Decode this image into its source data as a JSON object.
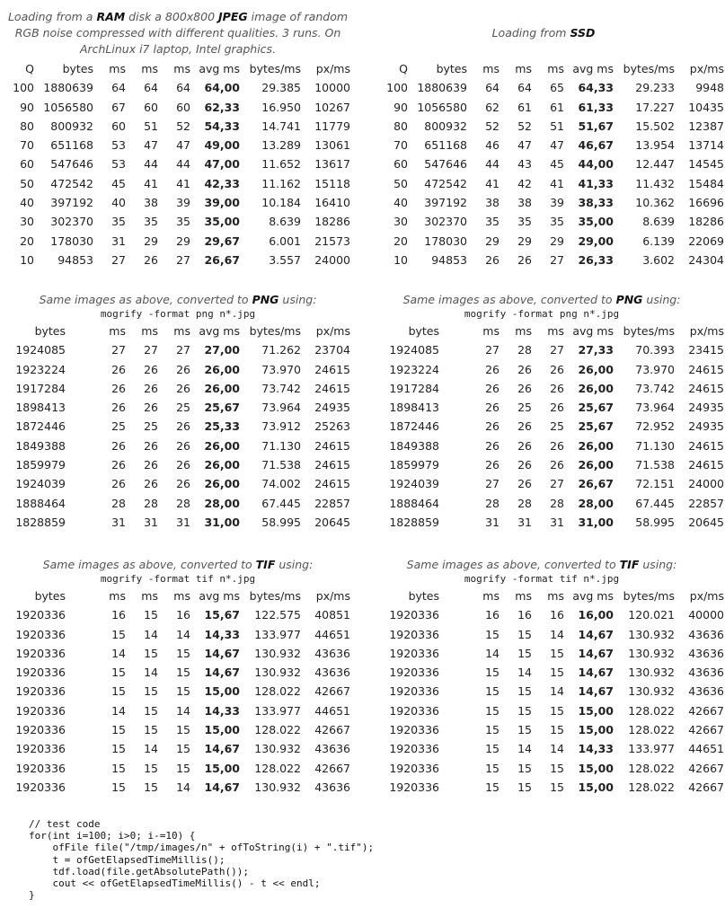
{
  "left_caption": {
    "pre_ram": "Loading from a ",
    "ram": "RAM",
    "mid1": " disk a 800x800 ",
    "jpeg": "JPEG",
    "rest": " image of random RGB noise compressed with different qualities. 3 runs. On ArchLinux i7 laptop, Intel graphics."
  },
  "right_caption": {
    "pre": "Loading from ",
    "ssd": "SSD"
  },
  "png_caption": {
    "pre": "Same images as above, converted to ",
    "fmt": "PNG",
    "post": " using:",
    "cmd": "mogrify -format png n*.jpg"
  },
  "tif_caption": {
    "pre": "Same images as above, converted to ",
    "fmt": "TIF",
    "post": " using:",
    "cmd": "mogrify -format tif n*.jpg"
  },
  "jpeg_headers": [
    "Q",
    "bytes",
    "ms",
    "ms",
    "ms",
    "avg ms",
    "bytes/ms",
    "px/ms"
  ],
  "img_headers": [
    "bytes",
    "ms",
    "ms",
    "ms",
    "avg ms",
    "bytes/ms",
    "px/ms"
  ],
  "jpeg_ram": [
    [
      "100",
      "1880639",
      "64",
      "64",
      "64",
      "64,00",
      "29.385",
      "10000"
    ],
    [
      "90",
      "1056580",
      "67",
      "60",
      "60",
      "62,33",
      "16.950",
      "10267"
    ],
    [
      "80",
      "800932",
      "60",
      "51",
      "52",
      "54,33",
      "14.741",
      "11779"
    ],
    [
      "70",
      "651168",
      "53",
      "47",
      "47",
      "49,00",
      "13.289",
      "13061"
    ],
    [
      "60",
      "547646",
      "53",
      "44",
      "44",
      "47,00",
      "11.652",
      "13617"
    ],
    [
      "50",
      "472542",
      "45",
      "41",
      "41",
      "42,33",
      "11.162",
      "15118"
    ],
    [
      "40",
      "397192",
      "40",
      "38",
      "39",
      "39,00",
      "10.184",
      "16410"
    ],
    [
      "30",
      "302370",
      "35",
      "35",
      "35",
      "35,00",
      "8.639",
      "18286"
    ],
    [
      "20",
      "178030",
      "31",
      "29",
      "29",
      "29,67",
      "6.001",
      "21573"
    ],
    [
      "10",
      "94853",
      "27",
      "26",
      "27",
      "26,67",
      "3.557",
      "24000"
    ]
  ],
  "jpeg_ssd": [
    [
      "100",
      "1880639",
      "64",
      "64",
      "65",
      "64,33",
      "29.233",
      "9948"
    ],
    [
      "90",
      "1056580",
      "62",
      "61",
      "61",
      "61,33",
      "17.227",
      "10435"
    ],
    [
      "80",
      "800932",
      "52",
      "52",
      "51",
      "51,67",
      "15.502",
      "12387"
    ],
    [
      "70",
      "651168",
      "46",
      "47",
      "47",
      "46,67",
      "13.954",
      "13714"
    ],
    [
      "60",
      "547646",
      "44",
      "43",
      "45",
      "44,00",
      "12.447",
      "14545"
    ],
    [
      "50",
      "472542",
      "41",
      "42",
      "41",
      "41,33",
      "11.432",
      "15484"
    ],
    [
      "40",
      "397192",
      "38",
      "38",
      "39",
      "38,33",
      "10.362",
      "16696"
    ],
    [
      "30",
      "302370",
      "35",
      "35",
      "35",
      "35,00",
      "8.639",
      "18286"
    ],
    [
      "20",
      "178030",
      "29",
      "29",
      "29",
      "29,00",
      "6.139",
      "22069"
    ],
    [
      "10",
      "94853",
      "26",
      "26",
      "27",
      "26,33",
      "3.602",
      "24304"
    ]
  ],
  "png_ram": [
    [
      "1924085",
      "27",
      "27",
      "27",
      "27,00",
      "71.262",
      "23704"
    ],
    [
      "1923224",
      "26",
      "26",
      "26",
      "26,00",
      "73.970",
      "24615"
    ],
    [
      "1917284",
      "26",
      "26",
      "26",
      "26,00",
      "73.742",
      "24615"
    ],
    [
      "1898413",
      "26",
      "26",
      "25",
      "25,67",
      "73.964",
      "24935"
    ],
    [
      "1872446",
      "25",
      "25",
      "26",
      "25,33",
      "73.912",
      "25263"
    ],
    [
      "1849388",
      "26",
      "26",
      "26",
      "26,00",
      "71.130",
      "24615"
    ],
    [
      "1859979",
      "26",
      "26",
      "26",
      "26,00",
      "71.538",
      "24615"
    ],
    [
      "1924039",
      "26",
      "26",
      "26",
      "26,00",
      "74.002",
      "24615"
    ],
    [
      "1888464",
      "28",
      "28",
      "28",
      "28,00",
      "67.445",
      "22857"
    ],
    [
      "1828859",
      "31",
      "31",
      "31",
      "31,00",
      "58.995",
      "20645"
    ]
  ],
  "png_ssd": [
    [
      "1924085",
      "27",
      "28",
      "27",
      "27,33",
      "70.393",
      "23415"
    ],
    [
      "1923224",
      "26",
      "26",
      "26",
      "26,00",
      "73.970",
      "24615"
    ],
    [
      "1917284",
      "26",
      "26",
      "26",
      "26,00",
      "73.742",
      "24615"
    ],
    [
      "1898413",
      "26",
      "25",
      "26",
      "25,67",
      "73.964",
      "24935"
    ],
    [
      "1872446",
      "26",
      "26",
      "25",
      "25,67",
      "72.952",
      "24935"
    ],
    [
      "1849388",
      "26",
      "26",
      "26",
      "26,00",
      "71.130",
      "24615"
    ],
    [
      "1859979",
      "26",
      "26",
      "26",
      "26,00",
      "71.538",
      "24615"
    ],
    [
      "1924039",
      "27",
      "26",
      "27",
      "26,67",
      "72.151",
      "24000"
    ],
    [
      "1888464",
      "28",
      "28",
      "28",
      "28,00",
      "67.445",
      "22857"
    ],
    [
      "1828859",
      "31",
      "31",
      "31",
      "31,00",
      "58.995",
      "20645"
    ]
  ],
  "tif_ram": [
    [
      "1920336",
      "16",
      "15",
      "16",
      "15,67",
      "122.575",
      "40851"
    ],
    [
      "1920336",
      "15",
      "14",
      "14",
      "14,33",
      "133.977",
      "44651"
    ],
    [
      "1920336",
      "14",
      "15",
      "15",
      "14,67",
      "130.932",
      "43636"
    ],
    [
      "1920336",
      "15",
      "14",
      "15",
      "14,67",
      "130.932",
      "43636"
    ],
    [
      "1920336",
      "15",
      "15",
      "15",
      "15,00",
      "128.022",
      "42667"
    ],
    [
      "1920336",
      "14",
      "15",
      "14",
      "14,33",
      "133.977",
      "44651"
    ],
    [
      "1920336",
      "15",
      "15",
      "15",
      "15,00",
      "128.022",
      "42667"
    ],
    [
      "1920336",
      "15",
      "14",
      "15",
      "14,67",
      "130.932",
      "43636"
    ],
    [
      "1920336",
      "15",
      "15",
      "15",
      "15,00",
      "128.022",
      "42667"
    ],
    [
      "1920336",
      "15",
      "15",
      "14",
      "14,67",
      "130.932",
      "43636"
    ]
  ],
  "tif_ssd": [
    [
      "1920336",
      "16",
      "16",
      "16",
      "16,00",
      "120.021",
      "40000"
    ],
    [
      "1920336",
      "15",
      "15",
      "14",
      "14,67",
      "130.932",
      "43636"
    ],
    [
      "1920336",
      "14",
      "15",
      "15",
      "14,67",
      "130.932",
      "43636"
    ],
    [
      "1920336",
      "15",
      "14",
      "15",
      "14,67",
      "130.932",
      "43636"
    ],
    [
      "1920336",
      "15",
      "15",
      "14",
      "14,67",
      "130.932",
      "43636"
    ],
    [
      "1920336",
      "15",
      "15",
      "15",
      "15,00",
      "128.022",
      "42667"
    ],
    [
      "1920336",
      "15",
      "15",
      "15",
      "15,00",
      "128.022",
      "42667"
    ],
    [
      "1920336",
      "15",
      "14",
      "14",
      "14,33",
      "133.977",
      "44651"
    ],
    [
      "1920336",
      "15",
      "15",
      "15",
      "15,00",
      "128.022",
      "42667"
    ],
    [
      "1920336",
      "15",
      "15",
      "15",
      "15,00",
      "128.022",
      "42667"
    ]
  ],
  "code": "// test code\nfor(int i=100; i>0; i-=10) {\n    ofFile file(\"/tmp/images/n\" + ofToString(i) + \".tif\");\n    t = ofGetElapsedTimeMillis();\n    tdf.load(file.getAbsolutePath());\n    cout << ofGetElapsedTimeMillis() - t << endl;\n}"
}
